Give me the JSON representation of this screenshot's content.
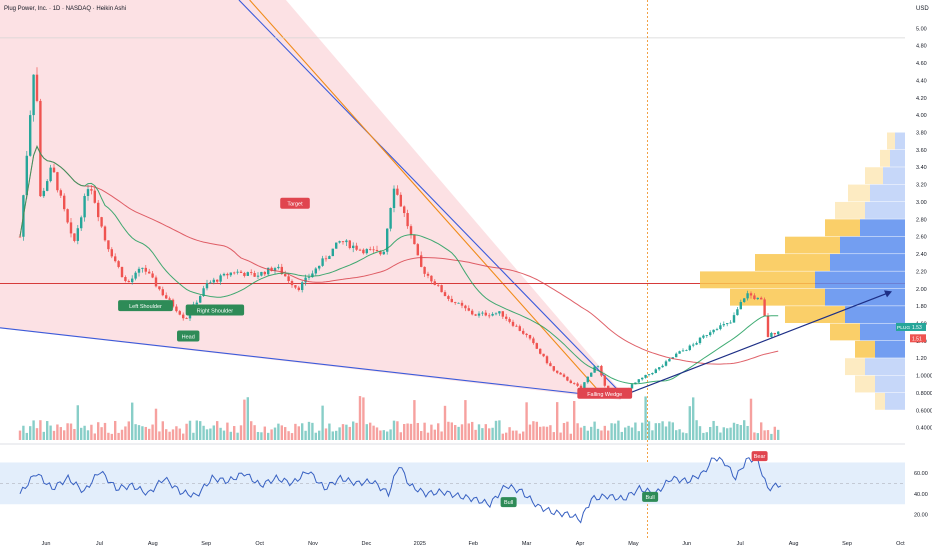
{
  "header": {
    "title": "Plug Power, Inc. · 1D · NASDAQ · Heikin Ashi",
    "currency": "USD"
  },
  "colors": {
    "up": "#26a69a",
    "down": "#ef5350",
    "wedge_fill": "#fbdcdf",
    "wedge_line": "#3b5bdb",
    "ma_fast": "#1f9d5c",
    "ma_slow": "#d9454f",
    "channel": "#f08c1a",
    "rsi_line": "#3861c2",
    "rsi_band": "#e3eefb",
    "vp_blue": "#5b8def",
    "vp_orange": "#f9c74f",
    "hline": "#d63a3a"
  },
  "chart_data": [
    {
      "type": "candlestick",
      "title": "",
      "y_axis": {
        "ticks": [
          5.0,
          4.8,
          4.6,
          4.4,
          4.2,
          4.0,
          3.8,
          3.6,
          3.4,
          3.2,
          3.0,
          2.8,
          2.6,
          2.4,
          2.2,
          2.0,
          1.8,
          1.6,
          1.4,
          1.2,
          1.0,
          0.8,
          0.6,
          0.4
        ],
        "tick_labels": [
          "5.00",
          "4.80",
          "4.60",
          "4.40",
          "4.20",
          "4.00",
          "3.80",
          "3.60",
          "3.40",
          "3.20",
          "3.00",
          "2.80",
          "2.60",
          "2.40",
          "2.20",
          "2.00",
          "1.80",
          "1.60",
          "1.40",
          "1.20",
          "1.0000",
          "0.8000",
          "0.6000",
          "0.4000"
        ],
        "range": [
          0.35,
          5.05
        ]
      },
      "x_axis": {
        "labels": [
          "Jun",
          "Jul",
          "Aug",
          "Sep",
          "Oct",
          "Nov",
          "Dec",
          "2025",
          "Feb",
          "Mar",
          "Apr",
          "May",
          "Jun",
          "Jul",
          "Aug",
          "Sep",
          "Oct"
        ],
        "label_months": [
          0,
          1,
          2,
          3,
          4,
          5,
          6,
          7,
          8,
          9,
          10,
          11,
          12,
          13,
          14,
          15,
          16
        ]
      },
      "price_anchors": [
        [
          0.0,
          2.6
        ],
        [
          0.3,
          4.85
        ],
        [
          0.35,
          3.0
        ],
        [
          0.6,
          3.4
        ],
        [
          1.0,
          2.5
        ],
        [
          1.3,
          3.25
        ],
        [
          1.6,
          2.55
        ],
        [
          2.0,
          2.05
        ],
        [
          2.3,
          2.25
        ],
        [
          2.7,
          1.92
        ],
        [
          3.1,
          1.65
        ],
        [
          3.5,
          2.05
        ],
        [
          4.0,
          2.2
        ],
        [
          4.4,
          2.15
        ],
        [
          4.8,
          2.25
        ],
        [
          5.2,
          2.0
        ],
        [
          5.5,
          2.2
        ],
        [
          6.0,
          2.55
        ],
        [
          6.4,
          2.45
        ],
        [
          6.8,
          2.4
        ],
        [
          7.0,
          3.2
        ],
        [
          7.2,
          2.85
        ],
        [
          7.5,
          2.25
        ],
        [
          8.0,
          1.9
        ],
        [
          8.5,
          1.7
        ],
        [
          9.0,
          1.72
        ],
        [
          9.5,
          1.45
        ],
        [
          10.0,
          1.05
        ],
        [
          10.5,
          0.85
        ],
        [
          10.8,
          1.15
        ],
        [
          11.0,
          0.78
        ],
        [
          11.3,
          0.82
        ],
        [
          11.6,
          0.95
        ],
        [
          12.0,
          1.1
        ],
        [
          12.3,
          1.25
        ],
        [
          12.6,
          1.35
        ],
        [
          13.0,
          1.55
        ],
        [
          13.3,
          1.6
        ],
        [
          13.6,
          1.95
        ],
        [
          13.9,
          1.85
        ],
        [
          14.0,
          1.45
        ],
        [
          14.2,
          1.52
        ]
      ],
      "series": [
        {
          "name": "Volume",
          "kind": "histogram"
        },
        {
          "kind": "moving-average",
          "role": "fast"
        },
        {
          "kind": "moving-average",
          "role": "slow"
        }
      ],
      "annotations": [
        {
          "text": "Left Shoulder",
          "month": 2.35,
          "price": 1.8
        },
        {
          "text": "Head",
          "month": 3.15,
          "price": 1.45
        },
        {
          "text": "Right Shoulder",
          "month": 3.65,
          "price": 1.75
        },
        {
          "text": "Target",
          "month": 5.15,
          "price": 2.98
        },
        {
          "text": "Falling Wedge",
          "month": 10.95,
          "price": 0.79
        }
      ],
      "price_label_last": "1.53",
      "price_label_prev": "1.51",
      "symbol_label": "PLUG",
      "volume_profile": [
        {
          "price": 3.7,
          "blue": 10,
          "orange": 8
        },
        {
          "price": 3.5,
          "blue": 15,
          "orange": 10
        },
        {
          "price": 3.3,
          "blue": 22,
          "orange": 18
        },
        {
          "price": 3.1,
          "blue": 35,
          "orange": 22
        },
        {
          "price": 2.9,
          "blue": 40,
          "orange": 30
        },
        {
          "price": 2.7,
          "blue": 45,
          "orange": 35
        },
        {
          "price": 2.5,
          "blue": 65,
          "orange": 55
        },
        {
          "price": 2.3,
          "blue": 75,
          "orange": 75
        },
        {
          "price": 2.1,
          "blue": 90,
          "orange": 115
        },
        {
          "price": 1.9,
          "blue": 80,
          "orange": 95
        },
        {
          "price": 1.7,
          "blue": 60,
          "orange": 60
        },
        {
          "price": 1.5,
          "blue": 45,
          "orange": 30
        },
        {
          "price": 1.3,
          "blue": 30,
          "orange": 20
        },
        {
          "price": 1.1,
          "blue": 40,
          "orange": 20
        },
        {
          "price": 0.9,
          "blue": 30,
          "orange": 20
        },
        {
          "price": 0.7,
          "blue": 20,
          "orange": 10
        }
      ]
    },
    {
      "type": "line",
      "title": "",
      "y_axis": {
        "ticks": [
          60,
          40,
          20
        ],
        "tick_labels": [
          "60.00",
          "40.00",
          "20.00"
        ],
        "range": [
          13,
          80
        ]
      },
      "band": [
        30,
        70
      ],
      "mid_line": 50,
      "rsi_anchors": [
        [
          0.0,
          40
        ],
        [
          0.3,
          60
        ],
        [
          0.6,
          45
        ],
        [
          0.9,
          55
        ],
        [
          1.2,
          42
        ],
        [
          1.5,
          62
        ],
        [
          1.8,
          45
        ],
        [
          2.1,
          48
        ],
        [
          2.4,
          40
        ],
        [
          2.7,
          55
        ],
        [
          3.0,
          42
        ],
        [
          3.3,
          38
        ],
        [
          3.6,
          55
        ],
        [
          3.9,
          52
        ],
        [
          4.2,
          60
        ],
        [
          4.5,
          48
        ],
        [
          4.8,
          55
        ],
        [
          5.1,
          50
        ],
        [
          5.4,
          62
        ],
        [
          5.7,
          45
        ],
        [
          6.0,
          55
        ],
        [
          6.3,
          50
        ],
        [
          6.6,
          52
        ],
        [
          6.9,
          40
        ],
        [
          7.1,
          68
        ],
        [
          7.3,
          48
        ],
        [
          7.6,
          40
        ],
        [
          7.9,
          42
        ],
        [
          8.2,
          38
        ],
        [
          8.5,
          35
        ],
        [
          8.8,
          30
        ],
        [
          9.1,
          48
        ],
        [
          9.4,
          42
        ],
        [
          9.7,
          28
        ],
        [
          10.0,
          22
        ],
        [
          10.3,
          20
        ],
        [
          10.5,
          15
        ],
        [
          10.7,
          35
        ],
        [
          11.0,
          38
        ],
        [
          11.3,
          35
        ],
        [
          11.6,
          45
        ],
        [
          11.9,
          40
        ],
        [
          12.2,
          55
        ],
        [
          12.5,
          52
        ],
        [
          12.8,
          60
        ],
        [
          13.0,
          75
        ],
        [
          13.2,
          70
        ],
        [
          13.4,
          55
        ],
        [
          13.6,
          72
        ],
        [
          13.8,
          74
        ],
        [
          14.0,
          45
        ],
        [
          14.3,
          50
        ]
      ],
      "labels": [
        {
          "text": "Bull",
          "month": 9.15,
          "value": 32
        },
        {
          "text": "Bull",
          "month": 11.8,
          "value": 37
        },
        {
          "text": "Bear",
          "month": 13.85,
          "value": 76
        }
      ]
    }
  ]
}
